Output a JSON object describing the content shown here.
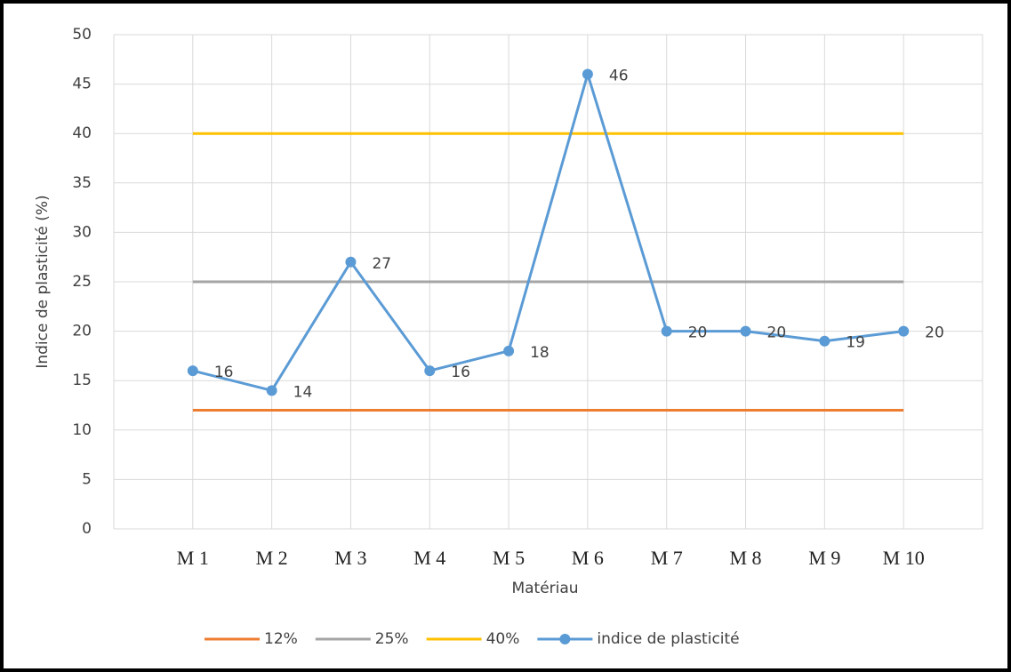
{
  "chart_data": {
    "type": "line",
    "categories": [
      "M 1",
      "M 2",
      "M 3",
      "M 4",
      "M 5",
      "M 6",
      "M 7",
      "M 8",
      "M 9",
      "M 10"
    ],
    "series": [
      {
        "name": "12%",
        "color": "#ED7D31",
        "values": [
          12,
          12,
          12,
          12,
          12,
          12,
          12,
          12,
          12,
          12
        ]
      },
      {
        "name": "25%",
        "color": "#A5A5A5",
        "values": [
          25,
          25,
          25,
          25,
          25,
          25,
          25,
          25,
          25,
          25
        ]
      },
      {
        "name": "40%",
        "color": "#FFC000",
        "values": [
          40,
          40,
          40,
          40,
          40,
          40,
          40,
          40,
          40,
          40
        ]
      },
      {
        "name": "indice de plasticité",
        "color": "#5B9BD5",
        "values": [
          16,
          14,
          27,
          16,
          18,
          46,
          20,
          20,
          19,
          20
        ],
        "markers": true,
        "data_labels": true
      }
    ],
    "xlabel": "Matériau",
    "ylabel": "Indice de plasticité (%)",
    "ylim": [
      0,
      50
    ],
    "yticks": [
      0,
      5,
      10,
      15,
      20,
      25,
      30,
      35,
      40,
      45,
      50
    ],
    "grid": true,
    "legend": "bottom"
  }
}
